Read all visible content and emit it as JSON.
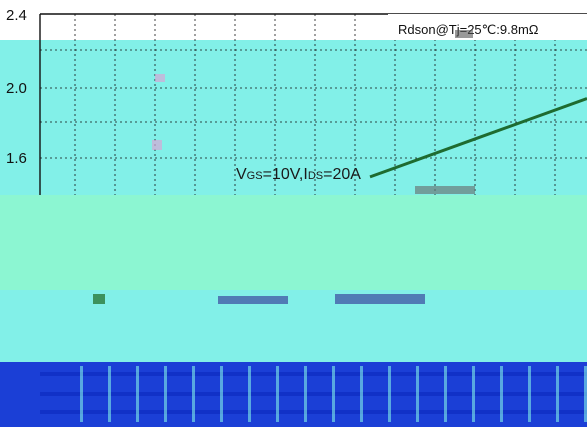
{
  "chart_data": {
    "type": "line",
    "y_tick_labels": [
      "2.4",
      "2.0",
      "1.6"
    ],
    "ylim": [
      1.2,
      2.4
    ],
    "grid": true,
    "legend_text": "Rdson@Tj=25℃:9.8mΩ",
    "annotation": "VGS=10V,IDS=20A",
    "annotation_parts": {
      "v": "V",
      "gs": "GS",
      "mid": "=10V,I",
      "ds": "DS",
      "end": "=20A"
    },
    "series": [
      {
        "values": [
          {
            "x": 0.0,
            "y": 1.32
          },
          {
            "x": 0.5,
            "y": 1.58
          },
          {
            "x": 1.0,
            "y": 1.84
          }
        ]
      }
    ],
    "colors": {
      "line": "#1e6b30",
      "cyan": "#82f0e8",
      "mint": "#8cf6d2",
      "blue": "#1b3fd6",
      "blue_dark": "#1131c7",
      "grid": "#111111"
    }
  }
}
